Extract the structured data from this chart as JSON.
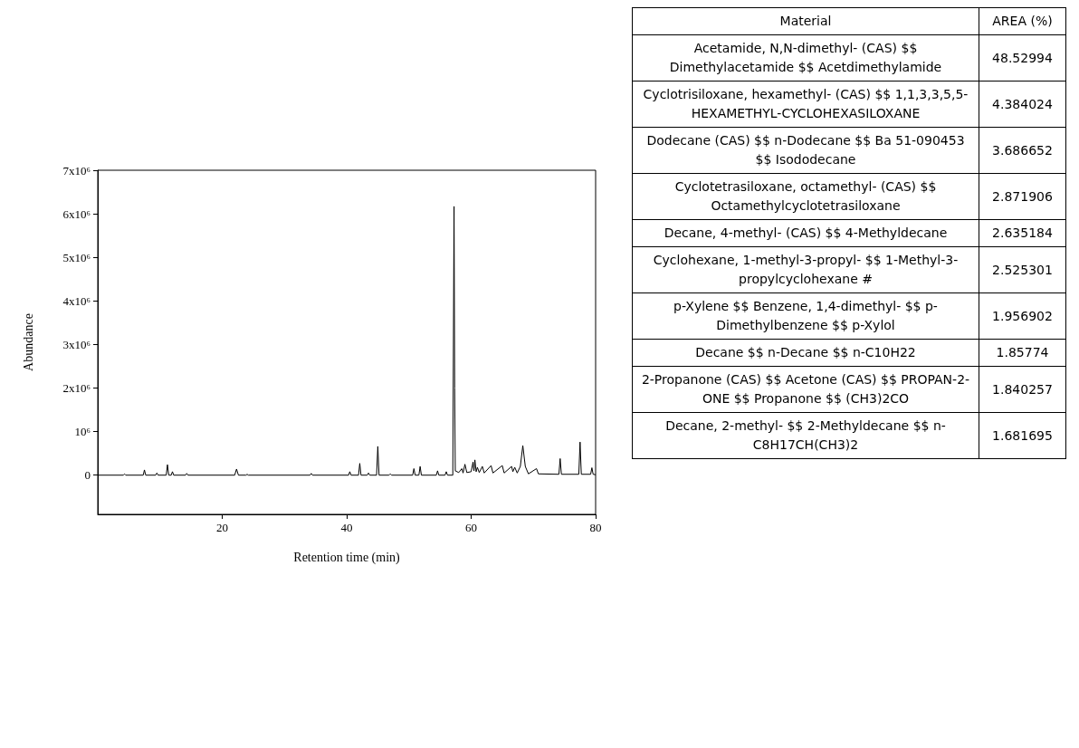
{
  "chart_data": [
    {
      "type": "line",
      "xlabel": "Retention time (min)",
      "ylabel": "Abundance",
      "xlim": [
        0,
        80
      ],
      "xticks": [
        20,
        40,
        60,
        80
      ],
      "ylim": [
        -900000,
        7000000
      ],
      "yticks": [
        {
          "value": 0,
          "label": "0"
        },
        {
          "value": 1000000,
          "label": "10⁶"
        },
        {
          "value": 2000000,
          "label": "2x10⁶"
        },
        {
          "value": 3000000,
          "label": "3x10⁶"
        },
        {
          "value": 4000000,
          "label": "4x10⁶"
        },
        {
          "value": 5000000,
          "label": "5x10⁶"
        },
        {
          "value": 6000000,
          "label": "6x10⁶"
        },
        {
          "value": 7000000,
          "label": "7x10⁶"
        }
      ],
      "grid": false,
      "marker": "none",
      "x": [
        0,
        4.1,
        4.3,
        4.5,
        7.3,
        7.5,
        7.7,
        9.3,
        9.5,
        9.7,
        11.0,
        11.2,
        11.4,
        11.8,
        12.0,
        12.2,
        14.1,
        14.3,
        14.5,
        22.0,
        22.3,
        22.6,
        23.8,
        24.0,
        24.2,
        34.1,
        34.3,
        34.5,
        40.3,
        40.5,
        40.7,
        41.9,
        42.1,
        42.3,
        43.3,
        43.5,
        43.7,
        44.8,
        45.0,
        45.2,
        46.8,
        47.0,
        47.2,
        50.6,
        50.8,
        51.0,
        51.6,
        51.8,
        52.0,
        54.4,
        54.6,
        54.8,
        55.8,
        56.0,
        56.2,
        57.05,
        57.15,
        57.25,
        57.35,
        57.45,
        58.0,
        58.5,
        58.7,
        59.0,
        59.3,
        60.0,
        60.3,
        60.45,
        60.6,
        60.8,
        61.0,
        61.3,
        61.8,
        62.1,
        63.2,
        63.5,
        65.0,
        65.3,
        66.5,
        66.7,
        67.0,
        67.4,
        67.9,
        68.3,
        68.7,
        69.2,
        70.5,
        70.8,
        74.1,
        74.3,
        74.5,
        77.3,
        77.5,
        77.7,
        79.2,
        79.4,
        79.6,
        80
      ],
      "series": [
        {
          "color": "#000000",
          "values": [
            0,
            0,
            30000,
            0,
            0,
            120000,
            0,
            0,
            50000,
            0,
            0,
            240000,
            0,
            0,
            80000,
            0,
            0,
            40000,
            0,
            0,
            140000,
            0,
            0,
            20000,
            0,
            0,
            40000,
            0,
            0,
            80000,
            0,
            0,
            270000,
            0,
            0,
            50000,
            0,
            0,
            660000,
            0,
            0,
            30000,
            0,
            0,
            150000,
            0,
            0,
            200000,
            0,
            0,
            100000,
            0,
            0,
            80000,
            0,
            0,
            3050000,
            6170000,
            2000000,
            100000,
            60000,
            150000,
            50000,
            250000,
            60000,
            80000,
            300000,
            100000,
            350000,
            80000,
            180000,
            60000,
            200000,
            50000,
            220000,
            50000,
            220000,
            50000,
            200000,
            80000,
            180000,
            50000,
            200000,
            680000,
            200000,
            30000,
            150000,
            30000,
            20000,
            380000,
            20000,
            20000,
            760000,
            20000,
            20000,
            170000,
            20000,
            10000
          ]
        }
      ]
    },
    {
      "type": "other",
      "xlabel": "Material",
      "ylabel": "AREA (%)",
      "data_labels": true,
      "categories": [
        "Acetamide, N,N-dimethyl- (CAS) $$ Dimethylacetamide $$ Acetdimethylamide",
        "Cyclotrisiloxane, hexamethyl- (CAS) $$ 1,1,3,3,5,5-HEXAMETHYL-CYCLOHEXASILOXANE",
        "Dodecane (CAS) $$ n-Dodecane $$ Ba 51-090453 $$ Isododecane",
        "Cyclotetrasiloxane, octamethyl- (CAS) $$ Octamethylcyclotetrasiloxane",
        "Decane, 4-methyl- (CAS) $$ 4-Methyldecane",
        "Cyclohexane, 1-methyl-3-propyl- $$ 1-Methyl-3-propylcyclohexane #",
        "p-Xylene $$ Benzene, 1,4-dimethyl- $$ p-Dimethylbenzene $$ p-Xylol",
        "Decane $$ n-Decane $$ n-C10H22",
        "2-Propanone (CAS) $$ Acetone (CAS) $$ PROPAN-2-ONE $$ Propanone $$ (CH3)2CO",
        "Decane, 2-methyl- $$ 2-Methyldecane $$ n-C8H17CH(CH3)2"
      ],
      "values": [
        48.52994,
        4.384024,
        3.686652,
        2.871906,
        2.635184,
        2.525301,
        1.956902,
        1.85774,
        1.840257,
        1.681695
      ]
    }
  ]
}
